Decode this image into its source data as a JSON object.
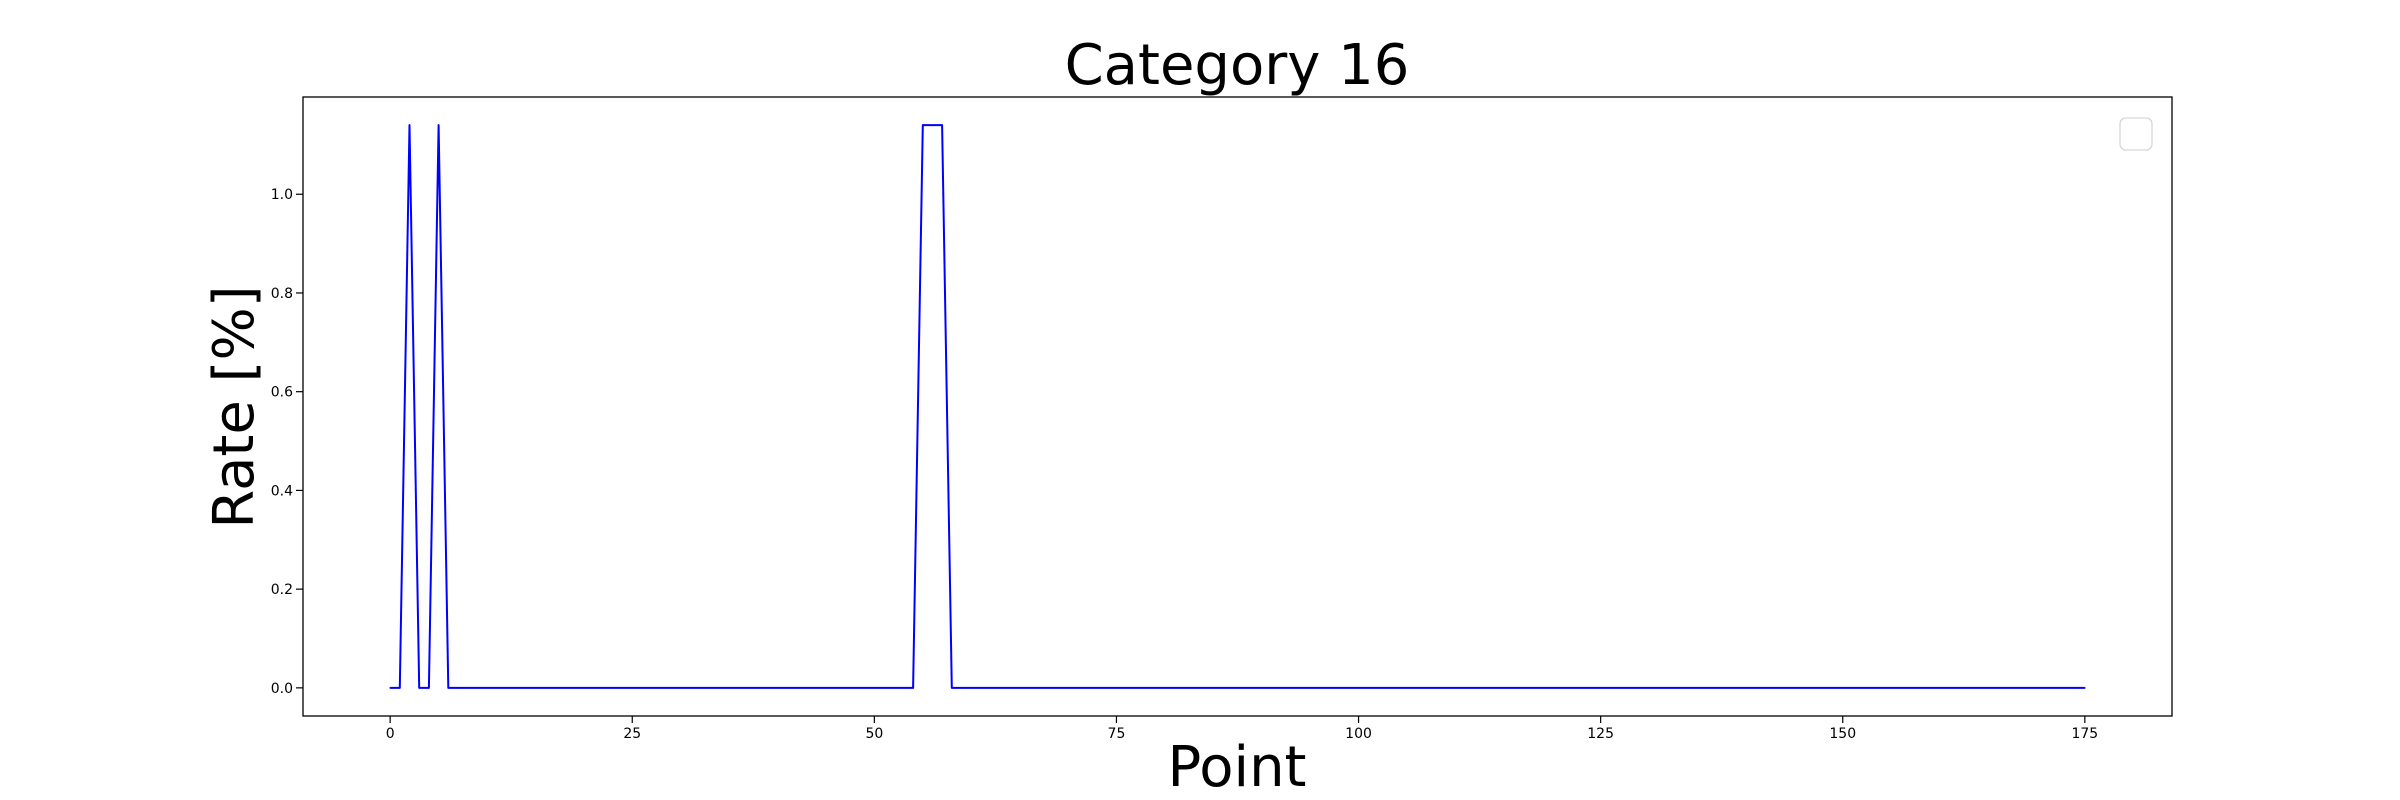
{
  "chart_data": {
    "type": "line",
    "title": "Category 16",
    "xlabel": "Point",
    "ylabel": "Rate [%]",
    "xlim": [
      -9,
      184
    ],
    "ylim": [
      -0.057,
      1.197
    ],
    "xticks": [
      0,
      25,
      50,
      75,
      100,
      125,
      150,
      175
    ],
    "yticks": [
      0.0,
      0.2,
      0.4,
      0.6,
      0.8,
      1.0
    ],
    "grid": false,
    "legend": "top-right",
    "series": [
      {
        "color": "#0000ff",
        "x": [
          0,
          1,
          2,
          3,
          4,
          5,
          6,
          7,
          54,
          55,
          56,
          57,
          58,
          59,
          175
        ],
        "y": [
          0,
          0,
          1.14,
          0,
          0,
          1.14,
          0,
          0,
          0,
          1.14,
          1.14,
          1.14,
          0,
          0,
          0
        ]
      }
    ]
  }
}
